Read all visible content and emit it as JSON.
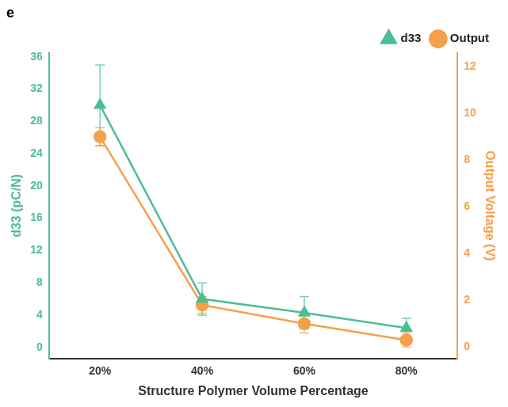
{
  "chart_data": {
    "type": "line",
    "panel_label": "e",
    "categories": [
      "20%",
      "40%",
      "60%",
      "80%"
    ],
    "x_label": "Structure Polymer Volume Percentage",
    "y_label": "d33 (pC/N)",
    "y2_label": "Output Voltage (V)",
    "ylim": [
      -1.4,
      36.5
    ],
    "yticks": [
      0,
      4,
      8,
      12,
      16,
      20,
      24,
      28,
      32,
      36
    ],
    "y2lim": [
      -0.5,
      12.6
    ],
    "y2ticks": [
      0,
      2,
      4,
      6,
      8,
      10,
      12
    ],
    "grid": false,
    "legend": "upper right",
    "series": [
      {
        "name": "d33",
        "color": "#4dbd98",
        "marker": "triangle",
        "values": [
          30,
          6,
          4.3,
          2.4
        ],
        "errors": [
          5,
          2,
          2,
          1.2
        ]
      },
      {
        "name": "Output",
        "color": "#f5a04a",
        "marker": "circle",
        "axis": "y2",
        "values": [
          9,
          1.8,
          1.0,
          0.3
        ],
        "errors": [
          0.4,
          0.35,
          0.4,
          0.3
        ]
      }
    ]
  }
}
